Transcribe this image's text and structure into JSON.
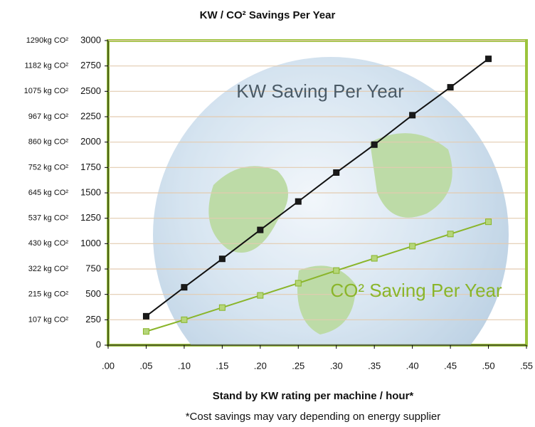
{
  "chart_data": {
    "type": "line",
    "title": "KW / CO² Savings Per Year",
    "x_label": "Stand by KW rating per machine / hour*",
    "footnote": "*Cost savings may vary depending on energy supplier",
    "x": [
      0.05,
      0.1,
      0.15,
      0.2,
      0.25,
      0.3,
      0.35,
      0.4,
      0.45,
      0.5
    ],
    "series": [
      {
        "name": "KW Saving Per Year",
        "color": "#111111",
        "label_color": "#4a5a66",
        "marker_color": "#1a1a1a",
        "values": [
          285,
          570,
          850,
          1135,
          1415,
          1700,
          1975,
          2265,
          2540,
          2820
        ]
      },
      {
        "name": "CO² Saving Per Year",
        "color": "#8ab52a",
        "label_color": "#8ab52a",
        "marker_color": "#b5d67a",
        "values": [
          135,
          250,
          370,
          490,
          610,
          735,
          855,
          975,
          1095,
          1215
        ]
      }
    ],
    "xlim": [
      0,
      0.55
    ],
    "xticks": [
      {
        "value": 0,
        "label": ".00"
      },
      {
        "value": 0.05,
        "label": ".05"
      },
      {
        "value": 0.1,
        "label": ".10"
      },
      {
        "value": 0.15,
        "label": ".15"
      },
      {
        "value": 0.2,
        "label": ".20"
      },
      {
        "value": 0.25,
        "label": ".25"
      },
      {
        "value": 0.3,
        "label": ".30"
      },
      {
        "value": 0.35,
        "label": ".35"
      },
      {
        "value": 0.4,
        "label": ".40"
      },
      {
        "value": 0.45,
        "label": ".45"
      },
      {
        "value": 0.5,
        "label": ".50"
      },
      {
        "value": 0.55,
        "label": ".55"
      }
    ],
    "ylim": [
      0,
      3000
    ],
    "yticks": [
      0,
      250,
      500,
      750,
      1000,
      1250,
      1500,
      1750,
      2000,
      2250,
      2500,
      2750,
      3000
    ],
    "y2lim": [
      0,
      1290
    ],
    "y2ticks": [
      {
        "value": 107,
        "label": "107 kg CO²"
      },
      {
        "value": 215,
        "label": "215 kg CO²"
      },
      {
        "value": 322,
        "label": "322 kg CO²"
      },
      {
        "value": 430,
        "label": "430 kg CO²"
      },
      {
        "value": 537,
        "label": "537 kg CO²"
      },
      {
        "value": 645,
        "label": "645 kg CO²"
      },
      {
        "value": 752,
        "label": "752 kg CO²"
      },
      {
        "value": 860,
        "label": "860 kg CO²"
      },
      {
        "value": 967,
        "label": "967 kg CO²"
      },
      {
        "value": 1075,
        "label": "1075 kg CO²"
      },
      {
        "value": 1182,
        "label": "1182 kg CO²"
      },
      {
        "value": 1290,
        "label": "1290kg CO²"
      }
    ],
    "grid": true,
    "frame_color": "#9cc43c"
  }
}
